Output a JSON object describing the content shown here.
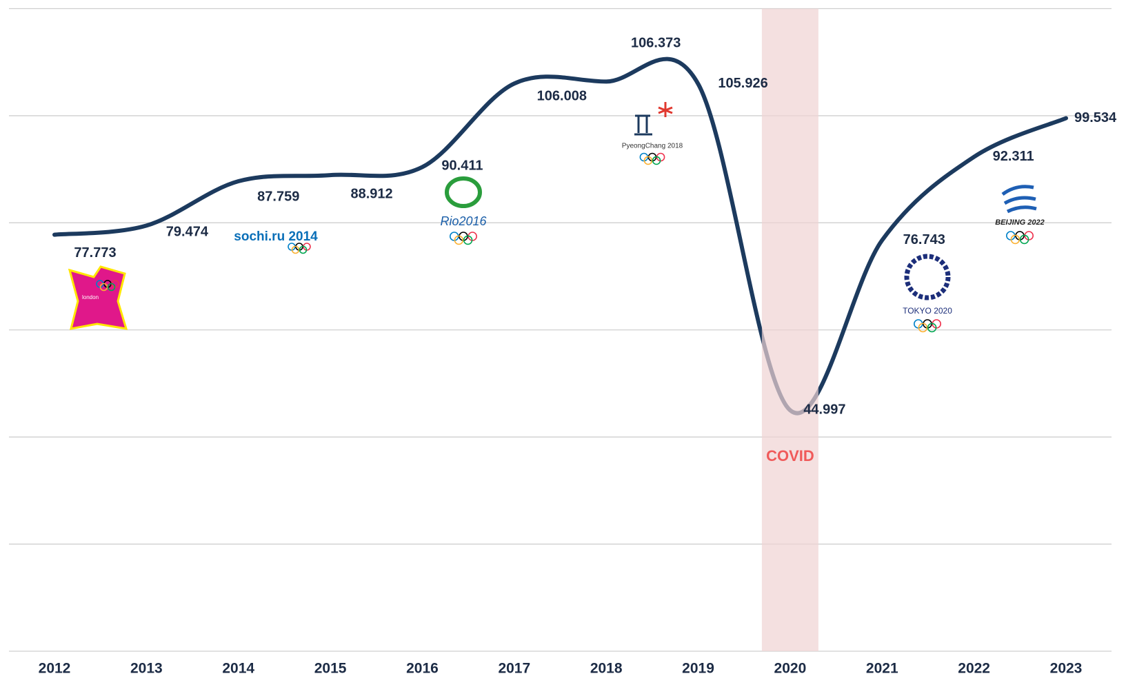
{
  "chart_data": {
    "type": "line",
    "categories": [
      "2012",
      "2013",
      "2014",
      "2015",
      "2016",
      "2017",
      "2018",
      "2019",
      "2020",
      "2021",
      "2022",
      "2023"
    ],
    "series": [
      {
        "name": null,
        "color": "#1c3a5e",
        "values": [
          77.773,
          79.474,
          87.759,
          88.912,
          90.411,
          106.008,
          106.373,
          105.926,
          44.997,
          76.743,
          92.311,
          99.534
        ]
      }
    ],
    "ylim": [
      0,
      120
    ],
    "yticks": [
      0,
      20,
      40,
      60,
      80,
      100,
      120
    ],
    "grid": true,
    "annotations": [
      {
        "text": "COVID",
        "x": "2020",
        "color": "#f05a5a",
        "band_color": "#efd3d3"
      }
    ],
    "logos": [
      {
        "x": "2012",
        "text": "london"
      },
      {
        "x": "2014",
        "text": "sochi.ru 2014"
      },
      {
        "x": "2016",
        "text": "Rio2016"
      },
      {
        "x": "2018",
        "text": "PyeongChang 2018"
      },
      {
        "x": "2021",
        "text": "TOKYO 2020"
      },
      {
        "x": "2022",
        "text": "BEIJING 2022"
      }
    ]
  }
}
